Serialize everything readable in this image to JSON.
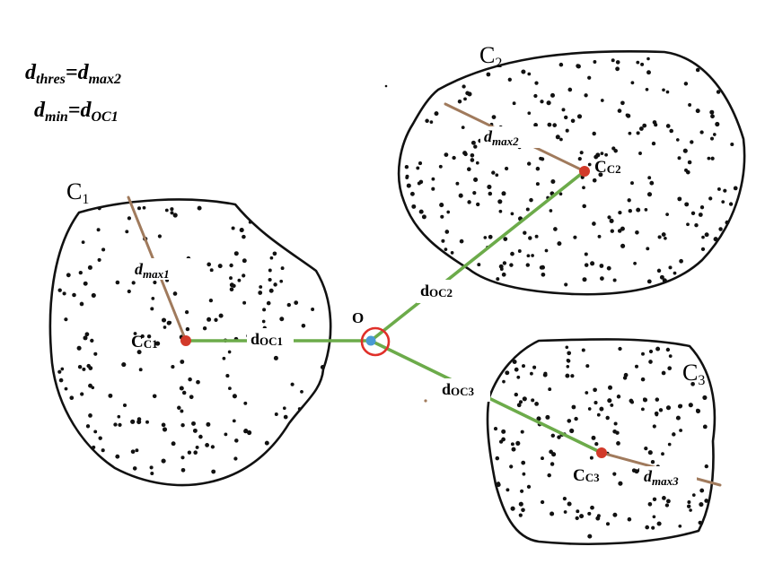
{
  "colors": {
    "boundary": "#111111",
    "dots": "#111111",
    "center": "#d23a2a",
    "origin": "#4a9ad4",
    "origin_ring": "#e0302a",
    "distance_line": "#6cab4a",
    "radius_line": "#a07a5c"
  },
  "equations": [
    {
      "lhs": "d",
      "lhs_sub": "thres",
      "op": "=",
      "rhs": "d",
      "rhs_sub": "max2"
    },
    {
      "lhs": "d",
      "lhs_sub": "min",
      "op": "=",
      "rhs": "d",
      "rhs_sub": "OC1"
    }
  ],
  "origin": {
    "label": "O"
  },
  "clusters": [
    {
      "name": "C",
      "name_sub": "1",
      "center_label": "C",
      "center_sub": "C1",
      "radius_label": "d",
      "radius_sub": "max1",
      "dist_label": "d",
      "dist_sub": "OC1"
    },
    {
      "name": "C",
      "name_sub": "2",
      "center_label": "C",
      "center_sub": "C2",
      "radius_label": "d",
      "radius_sub": "max2",
      "dist_label": "d",
      "dist_sub": "OC2"
    },
    {
      "name": "C",
      "name_sub": "3",
      "center_label": "C",
      "center_sub": "C3",
      "radius_label": "d",
      "radius_sub": "max3",
      "dist_label": "d",
      "dist_sub": "OC3"
    }
  ]
}
